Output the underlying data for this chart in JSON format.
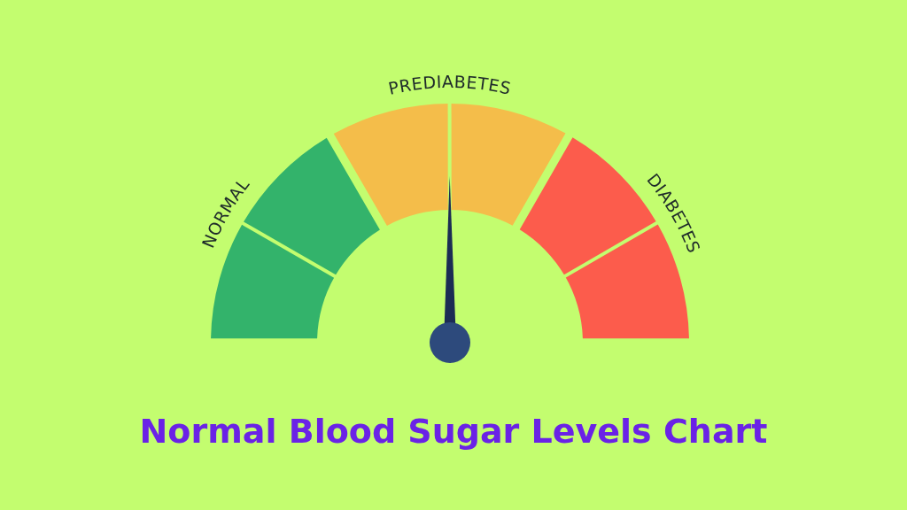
{
  "chart_data": {
    "type": "donut",
    "title": "Normal Blood Sugar Levels Chart",
    "categories": [
      "NORMAL",
      "PREDIABETES",
      "DIABETES"
    ],
    "values": [
      33.3,
      33.3,
      33.4
    ],
    "colors": [
      "#33b36b",
      "#f4bd4a",
      "#fc5c4c"
    ],
    "needle": "PREDIABETES"
  }
}
